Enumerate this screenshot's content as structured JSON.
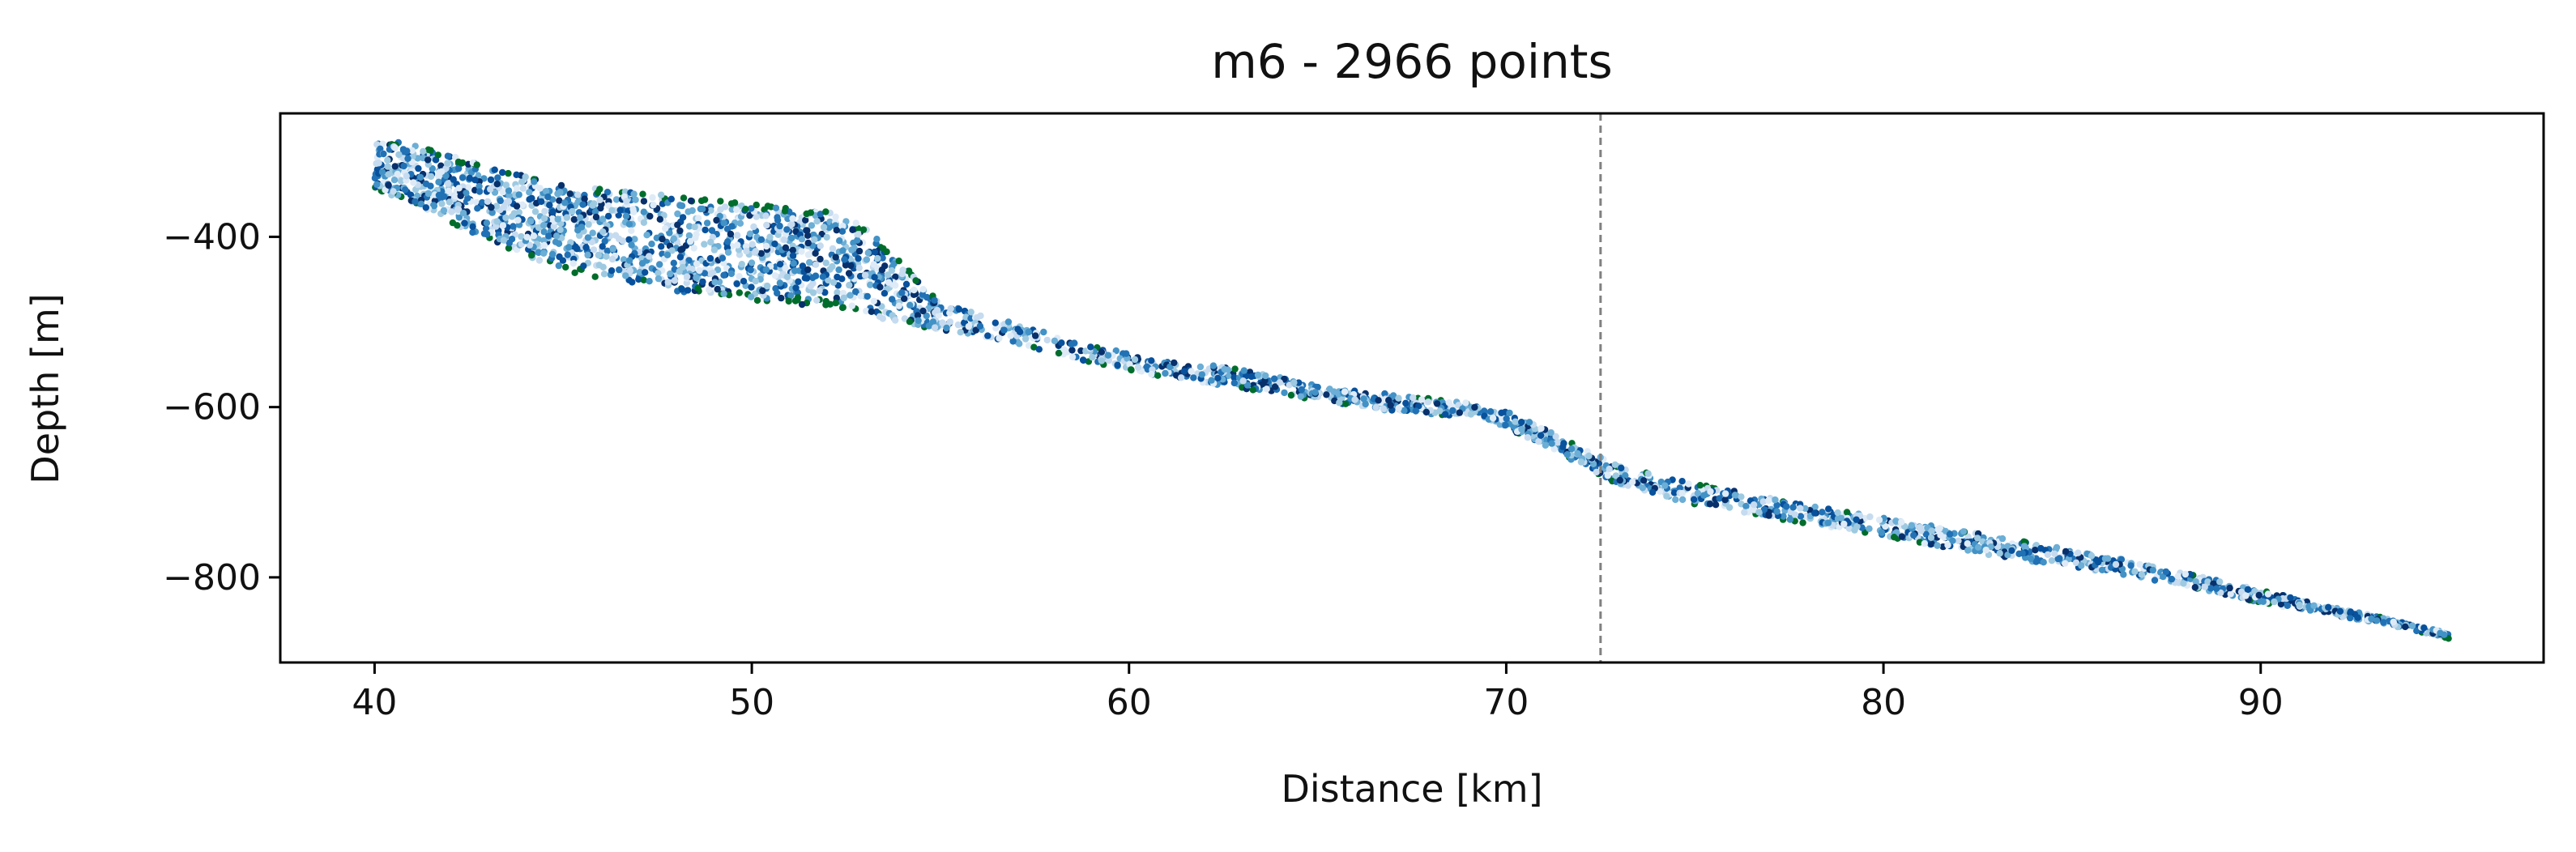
{
  "chart_data": {
    "type": "scatter",
    "title": "m6 - 2966 points",
    "xlabel": "Distance [km]",
    "ylabel": "Depth [m]",
    "xlim": [
      37.5,
      97.5
    ],
    "ylim": [
      -900,
      -255
    ],
    "x_ticks": [
      {
        "value": 40,
        "label": "40"
      },
      {
        "value": 50,
        "label": "50"
      },
      {
        "value": 60,
        "label": "60"
      },
      {
        "value": 70,
        "label": "70"
      },
      {
        "value": 80,
        "label": "80"
      },
      {
        "value": 90,
        "label": "90"
      }
    ],
    "y_ticks": [
      {
        "value": -400,
        "label": "−400"
      },
      {
        "value": -600,
        "label": "−600"
      },
      {
        "value": -800,
        "label": "−800"
      }
    ],
    "grid": false,
    "legend": "none",
    "reference_line": {
      "orientation": "vertical",
      "x": 72.5,
      "style": "dashed",
      "color": "#808080"
    },
    "point_count": 2966,
    "point_colors": [
      "#08306b",
      "#08519c",
      "#2171b5",
      "#4292c6",
      "#6baed6",
      "#9ecae1",
      "#c6dbef",
      "#deebf7",
      "#006d2c"
    ],
    "profile": {
      "upper_envelope": [
        [
          40,
          -288
        ],
        [
          41,
          -290
        ],
        [
          43,
          -318
        ],
        [
          45,
          -338
        ],
        [
          48,
          -352
        ],
        [
          50,
          -362
        ],
        [
          52,
          -370
        ],
        [
          53,
          -388
        ],
        [
          54,
          -432
        ],
        [
          55,
          -478
        ],
        [
          57,
          -502
        ],
        [
          59,
          -528
        ],
        [
          61,
          -545
        ],
        [
          63,
          -555
        ],
        [
          65,
          -575
        ],
        [
          67,
          -585
        ],
        [
          69,
          -595
        ],
        [
          70,
          -605
        ],
        [
          71,
          -625
        ],
        [
          72,
          -648
        ],
        [
          73,
          -670
        ],
        [
          75,
          -690
        ],
        [
          78,
          -715
        ],
        [
          80,
          -730
        ],
        [
          83,
          -752
        ],
        [
          86,
          -775
        ],
        [
          88,
          -795
        ],
        [
          90,
          -815
        ],
        [
          92,
          -835
        ],
        [
          94,
          -855
        ],
        [
          95,
          -866
        ]
      ],
      "lower_envelope": [
        [
          40,
          -345
        ],
        [
          41,
          -360
        ],
        [
          43,
          -405
        ],
        [
          45,
          -440
        ],
        [
          48,
          -465
        ],
        [
          50,
          -475
        ],
        [
          52,
          -482
        ],
        [
          53,
          -492
        ],
        [
          54,
          -502
        ],
        [
          55,
          -510
        ],
        [
          57,
          -525
        ],
        [
          59,
          -548
        ],
        [
          61,
          -565
        ],
        [
          63,
          -578
        ],
        [
          65,
          -592
        ],
        [
          67,
          -605
        ],
        [
          69,
          -612
        ],
        [
          70,
          -625
        ],
        [
          71,
          -645
        ],
        [
          72,
          -668
        ],
        [
          73,
          -692
        ],
        [
          75,
          -715
        ],
        [
          78,
          -737
        ],
        [
          80,
          -752
        ],
        [
          83,
          -775
        ],
        [
          86,
          -795
        ],
        [
          88,
          -810
        ],
        [
          90,
          -830
        ],
        [
          92,
          -845
        ],
        [
          94,
          -862
        ],
        [
          95,
          -872
        ]
      ]
    }
  }
}
